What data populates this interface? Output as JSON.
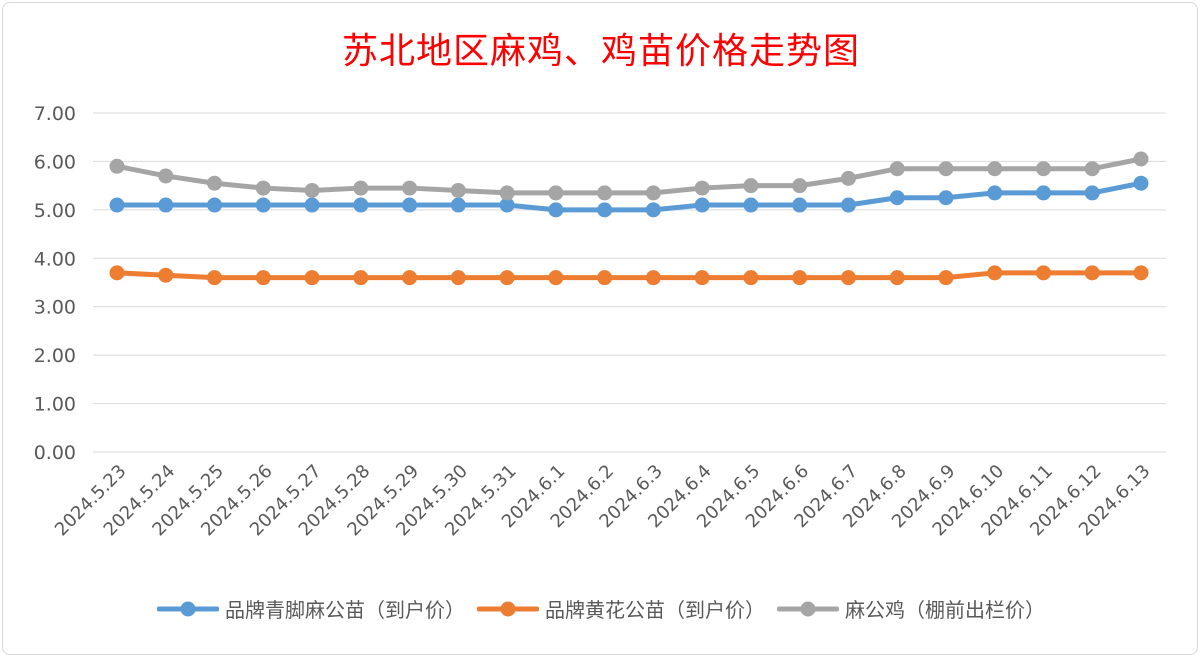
{
  "chart_data": {
    "type": "line",
    "title": "苏北地区麻鸡、鸡苗价格走势图",
    "xlabel": "",
    "ylabel": "",
    "ylim": [
      0,
      7
    ],
    "yticks": [
      "0.00",
      "1.00",
      "2.00",
      "3.00",
      "4.00",
      "5.00",
      "6.00",
      "7.00"
    ],
    "grid": true,
    "legend_position": "bottom",
    "categories": [
      "2024.5.23",
      "2024.5.24",
      "2024.5.25",
      "2024.5.26",
      "2024.5.27",
      "2024.5.28",
      "2024.5.29",
      "2024.5.30",
      "2024.5.31",
      "2024.6.1",
      "2024.6.2",
      "2024.6.3",
      "2024.6.4",
      "2024.6.5",
      "2024.6.6",
      "2024.6.7",
      "2024.6.8",
      "2024.6.9",
      "2024.6.10",
      "2024.6.11",
      "2024.6.12",
      "2024.6.13"
    ],
    "series": [
      {
        "name": "品牌青脚麻公苗（到户价）",
        "color": "#5b9bd5",
        "values": [
          5.1,
          5.1,
          5.1,
          5.1,
          5.1,
          5.1,
          5.1,
          5.1,
          5.1,
          5.0,
          5.0,
          5.0,
          5.1,
          5.1,
          5.1,
          5.1,
          5.25,
          5.25,
          5.35,
          5.35,
          5.35,
          5.55
        ]
      },
      {
        "name": "品牌黄花公苗（到户价）",
        "color": "#ed7d31",
        "values": [
          3.7,
          3.65,
          3.6,
          3.6,
          3.6,
          3.6,
          3.6,
          3.6,
          3.6,
          3.6,
          3.6,
          3.6,
          3.6,
          3.6,
          3.6,
          3.6,
          3.6,
          3.6,
          3.7,
          3.7,
          3.7,
          3.7
        ]
      },
      {
        "name": "麻公鸡（棚前出栏价）",
        "color": "#a5a5a5",
        "values": [
          5.9,
          5.7,
          5.55,
          5.45,
          5.4,
          5.45,
          5.45,
          5.4,
          5.35,
          5.35,
          5.35,
          5.35,
          5.45,
          5.5,
          5.5,
          5.65,
          5.85,
          5.85,
          5.85,
          5.85,
          5.85,
          6.05
        ]
      }
    ]
  }
}
